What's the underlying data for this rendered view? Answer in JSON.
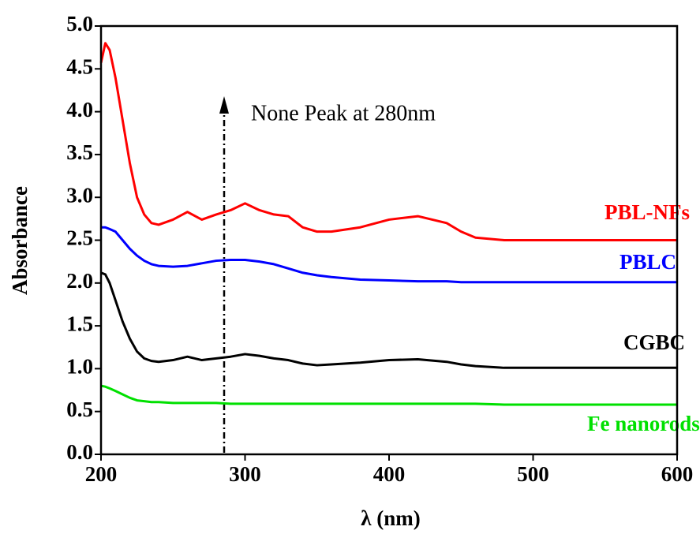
{
  "chart_data": {
    "type": "line",
    "x_label": "λ (nm)",
    "y_label": "Absorbance",
    "annotation": "None Peak at 280nm",
    "x": [
      200,
      203,
      206,
      210,
      215,
      220,
      225,
      230,
      235,
      240,
      250,
      260,
      270,
      280,
      290,
      300,
      310,
      320,
      330,
      340,
      350,
      360,
      380,
      400,
      420,
      440,
      450,
      460,
      480,
      500,
      550,
      600
    ],
    "series": [
      {
        "name": "PBL-NFs",
        "color": "#ff0000",
        "values": [
          4.57,
          4.8,
          4.72,
          4.4,
          3.9,
          3.4,
          3.0,
          2.8,
          2.7,
          2.68,
          2.74,
          2.83,
          2.74,
          2.8,
          2.85,
          2.93,
          2.85,
          2.8,
          2.78,
          2.65,
          2.6,
          2.6,
          2.65,
          2.74,
          2.78,
          2.7,
          2.6,
          2.53,
          2.5,
          2.5,
          2.5,
          2.5
        ]
      },
      {
        "name": "PBLC",
        "color": "#0000ff",
        "values": [
          2.65,
          2.65,
          2.63,
          2.6,
          2.5,
          2.4,
          2.32,
          2.26,
          2.22,
          2.2,
          2.19,
          2.2,
          2.23,
          2.26,
          2.27,
          2.27,
          2.25,
          2.22,
          2.17,
          2.12,
          2.09,
          2.07,
          2.04,
          2.03,
          2.02,
          2.02,
          2.01,
          2.01,
          2.01,
          2.01,
          2.01,
          2.01
        ]
      },
      {
        "name": "CGBC",
        "color": "#000000",
        "values": [
          2.12,
          2.1,
          2.0,
          1.8,
          1.55,
          1.35,
          1.2,
          1.12,
          1.09,
          1.08,
          1.1,
          1.14,
          1.1,
          1.12,
          1.14,
          1.17,
          1.15,
          1.12,
          1.1,
          1.06,
          1.04,
          1.05,
          1.07,
          1.1,
          1.11,
          1.08,
          1.05,
          1.03,
          1.01,
          1.01,
          1.01,
          1.01
        ]
      },
      {
        "name": "Fe nanorods",
        "color": "#00e000",
        "values": [
          0.8,
          0.79,
          0.77,
          0.74,
          0.7,
          0.66,
          0.63,
          0.62,
          0.61,
          0.61,
          0.6,
          0.6,
          0.6,
          0.6,
          0.59,
          0.59,
          0.59,
          0.59,
          0.59,
          0.59,
          0.59,
          0.59,
          0.59,
          0.59,
          0.59,
          0.59,
          0.59,
          0.59,
          0.58,
          0.58,
          0.58,
          0.58
        ]
      }
    ],
    "xlim": [
      200,
      600
    ],
    "xticks": [
      200,
      300,
      400,
      500,
      600
    ],
    "ylim": [
      0,
      5
    ],
    "yticks": [
      {
        "value": 0,
        "label": "0.0"
      },
      {
        "value": 0.5,
        "label": "0.5"
      },
      {
        "value": 1,
        "label": "1.0"
      },
      {
        "value": 1.5,
        "label": "1.5"
      },
      {
        "value": 2,
        "label": "2.0"
      },
      {
        "value": 2.5,
        "label": "2.5"
      },
      {
        "value": 3,
        "label": "3.0"
      },
      {
        "value": 3.5,
        "label": "3.5"
      },
      {
        "value": 4,
        "label": "4.0"
      },
      {
        "value": 4.5,
        "label": "4.5"
      },
      {
        "value": 5,
        "label": "5.0"
      }
    ]
  }
}
